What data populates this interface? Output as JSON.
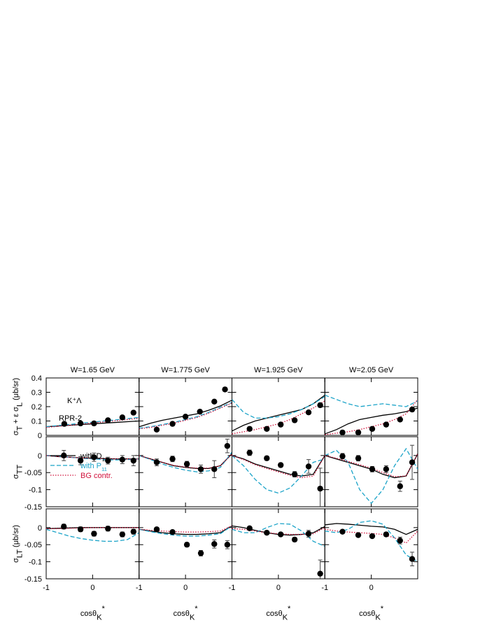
{
  "chart_data": {
    "type": "line",
    "annotations": [
      "K⁺Λ",
      "RPR-2"
    ],
    "titles": [
      "W=1.65 GeV",
      "W=1.775 GeV",
      "W=1.925 GeV",
      "W=2.05 GeV"
    ],
    "xlabel": [
      {
        "t": "cosθ"
      },
      {
        "t": "K",
        "pos": "sub"
      },
      {
        "t": "*",
        "pos": "sup"
      }
    ],
    "xlim": [
      -1,
      1
    ],
    "xticks": [
      -1,
      0
    ],
    "rows": [
      {
        "ylim": [
          0,
          0.4
        ],
        "yticks": [
          0,
          0.1,
          0.2,
          0.3,
          0.4
        ],
        "ylabel": [
          {
            "t": "σ"
          },
          {
            "t": "T",
            "pos": "sub"
          },
          {
            "t": " + ε σ"
          },
          {
            "t": "L",
            "pos": "sub"
          },
          {
            "t": "  (μb/sr)"
          }
        ]
      },
      {
        "ylim": [
          -0.15,
          0.055
        ],
        "yticks": [
          -0.15,
          -0.1,
          -0.05,
          0
        ],
        "ylabel": [
          {
            "t": "σ"
          },
          {
            "t": "TT",
            "pos": "sub"
          }
        ]
      },
      {
        "ylim": [
          -0.15,
          0.055
        ],
        "yticks": [
          -0.15,
          -0.1,
          -0.05,
          0
        ],
        "ylabel": [
          {
            "t": "σ"
          },
          {
            "t": "LT",
            "pos": "sub"
          },
          {
            "t": "  (μb/sr)"
          }
        ]
      }
    ],
    "series": [
      {
        "name": [
          {
            "t": "with D"
          },
          {
            "t": "13",
            "pos": "sub"
          }
        ],
        "color": "#000000",
        "dash": "solid"
      },
      {
        "name": [
          {
            "t": "with P"
          },
          {
            "t": "11",
            "pos": "sub"
          }
        ],
        "color": "#1aa3c8",
        "dash": "dashed"
      },
      {
        "name": [
          {
            "t": "BG contr."
          }
        ],
        "color": "#d0103a",
        "dash": "dotted"
      }
    ],
    "curve_x": [
      -1,
      -0.75,
      -0.5,
      -0.25,
      0,
      0.25,
      0.5,
      0.75,
      1
    ],
    "panels": [
      [
        {
          "curves": [
            [
              0.06,
              0.065,
              0.07,
              0.075,
              0.08,
              0.085,
              0.09,
              0.095,
              0.1
            ],
            [
              0.06,
              0.068,
              0.076,
              0.084,
              0.092,
              0.1,
              0.108,
              0.116,
              0.125
            ],
            [
              0.055,
              0.063,
              0.07,
              0.078,
              0.086,
              0.094,
              0.102,
              0.11,
              0.118
            ]
          ],
          "points": {
            "x": [
              -0.61,
              -0.26,
              0.03,
              0.33,
              0.64,
              0.88
            ],
            "y": [
              0.08,
              0.083,
              0.083,
              0.105,
              0.125,
              0.158
            ],
            "err": [
              0.005,
              0.005,
              0.005,
              0.005,
              0.005,
              0.005
            ]
          }
        },
        {
          "curves": [
            [
              0.06,
              0.085,
              0.105,
              0.12,
              0.135,
              0.15,
              0.175,
              0.205,
              0.245
            ],
            [
              0.05,
              0.06,
              0.075,
              0.09,
              0.11,
              0.13,
              0.16,
              0.195,
              0.23
            ],
            [
              0.045,
              0.055,
              0.07,
              0.085,
              0.105,
              0.125,
              0.155,
              0.19,
              0.225
            ]
          ],
          "points": {
            "x": [
              -0.62,
              -0.28,
              0.0,
              0.31,
              0.62,
              0.85
            ],
            "y": [
              0.04,
              0.08,
              0.13,
              0.165,
              0.235,
              0.32
            ],
            "err": [
              0.005,
              0.005,
              0.005,
              0.005,
              0.005,
              0.006
            ]
          }
        },
        {
          "curves": [
            [
              0.03,
              0.07,
              0.1,
              0.12,
              0.14,
              0.16,
              0.18,
              0.22,
              0.28
            ],
            [
              0.25,
              0.16,
              0.12,
              0.12,
              0.13,
              0.15,
              0.18,
              0.22,
              0.27
            ],
            [
              0.01,
              0.025,
              0.04,
              0.06,
              0.08,
              0.11,
              0.15,
              0.19,
              0.24
            ]
          ],
          "points": {
            "x": [
              -0.62,
              -0.25,
              0.05,
              0.35,
              0.65,
              0.9
            ],
            "y": [
              0.045,
              0.045,
              0.075,
              0.105,
              0.16,
              0.21
            ],
            "err": [
              0.004,
              0.004,
              0.004,
              0.005,
              0.006,
              0.015
            ]
          }
        },
        {
          "curves": [
            [
              0.01,
              0.04,
              0.08,
              0.11,
              0.125,
              0.14,
              0.15,
              0.165,
              0.19
            ],
            [
              0.28,
              0.25,
              0.22,
              0.2,
              0.21,
              0.22,
              0.21,
              0.2,
              0.24
            ],
            [
              0.005,
              0.015,
              0.025,
              0.04,
              0.06,
              0.08,
              0.11,
              0.15,
              0.25
            ]
          ],
          "points": {
            "x": [
              -0.62,
              -0.28,
              0.02,
              0.32,
              0.62,
              0.88
            ],
            "y": [
              0.02,
              0.02,
              0.045,
              0.075,
              0.11,
              0.18
            ],
            "err": [
              0.003,
              0.003,
              0.004,
              0.005,
              0.006,
              0.012
            ]
          }
        }
      ],
      [
        {
          "curves": [
            [
              0,
              -0.003,
              -0.005,
              -0.007,
              -0.008,
              -0.009,
              -0.01,
              -0.01,
              -0.01
            ],
            [
              0,
              -0.002,
              -0.005,
              -0.008,
              -0.01,
              -0.012,
              -0.013,
              -0.012,
              -0.01
            ],
            [
              0,
              -0.003,
              -0.005,
              -0.007,
              -0.008,
              -0.009,
              -0.01,
              -0.01,
              -0.01
            ]
          ],
          "points": {
            "x": [
              -0.62,
              -0.26,
              0.03,
              0.33,
              0.64,
              0.88
            ],
            "y": [
              0,
              -0.015,
              -0.005,
              -0.015,
              -0.012,
              -0.015
            ],
            "err": [
              0.015,
              0.012,
              0.012,
              0.01,
              0.012,
              0.015
            ]
          }
        },
        {
          "curves": [
            [
              0,
              -0.01,
              -0.02,
              -0.03,
              -0.035,
              -0.038,
              -0.038,
              -0.03,
              0.005
            ],
            [
              0,
              -0.012,
              -0.025,
              -0.035,
              -0.043,
              -0.048,
              -0.045,
              -0.035,
              0.01
            ],
            [
              0,
              -0.01,
              -0.02,
              -0.029,
              -0.034,
              -0.037,
              -0.037,
              -0.03,
              0.005
            ]
          ],
          "points": {
            "x": [
              -0.62,
              -0.28,
              0.03,
              0.33,
              0.62,
              0.9
            ],
            "y": [
              -0.02,
              -0.01,
              -0.025,
              -0.04,
              -0.04,
              0.028
            ],
            "err": [
              0.01,
              0.008,
              0.008,
              0.012,
              0.025,
              0.02
            ]
          }
        },
        {
          "curves": [
            [
              0,
              -0.01,
              -0.025,
              -0.035,
              -0.045,
              -0.055,
              -0.06,
              -0.055,
              0
            ],
            [
              0,
              -0.03,
              -0.07,
              -0.1,
              -0.11,
              -0.095,
              -0.06,
              -0.02,
              -0.01
            ],
            [
              0,
              -0.012,
              -0.027,
              -0.038,
              -0.048,
              -0.058,
              -0.065,
              -0.06,
              0
            ]
          ],
          "points": {
            "x": [
              -0.62,
              -0.25,
              0.05,
              0.35,
              0.65,
              0.9
            ],
            "y": [
              0.008,
              -0.008,
              -0.028,
              -0.055,
              -0.032,
              -0.097
            ],
            "err": [
              0.008,
              0.006,
              0.006,
              0.008,
              0.02,
              0.06
            ]
          }
        },
        {
          "curves": [
            [
              0,
              -0.01,
              -0.02,
              -0.03,
              -0.04,
              -0.055,
              -0.065,
              -0.06,
              0.005
            ],
            [
              0,
              0.015,
              -0.02,
              -0.1,
              -0.14,
              -0.1,
              -0.03,
              0.02,
              -0.04
            ],
            [
              0,
              -0.008,
              -0.017,
              -0.027,
              -0.037,
              -0.05,
              -0.062,
              -0.06,
              0.005
            ]
          ],
          "points": {
            "x": [
              -0.62,
              -0.28,
              0.02,
              0.32,
              0.62,
              0.88
            ],
            "y": [
              -0.002,
              -0.008,
              -0.04,
              -0.04,
              -0.09,
              -0.02
            ],
            "err": [
              0.008,
              0.008,
              0.008,
              0.01,
              0.015,
              0.05
            ]
          }
        }
      ],
      [
        {
          "curves": [
            [
              -0.003,
              -0.002,
              -0.001,
              0,
              0,
              0,
              0,
              0,
              0
            ],
            [
              -0.005,
              -0.015,
              -0.025,
              -0.032,
              -0.037,
              -0.04,
              -0.04,
              -0.035,
              -0.015
            ],
            [
              -0.003,
              -0.003,
              -0.002,
              -0.001,
              0,
              0,
              0,
              0,
              0
            ]
          ],
          "points": {
            "x": [
              -0.62,
              -0.26,
              0.03,
              0.33,
              0.64,
              0.88
            ],
            "y": [
              0.003,
              -0.005,
              -0.018,
              -0.003,
              -0.02,
              -0.012
            ],
            "err": [
              0.007,
              0.007,
              0.007,
              0.007,
              0.007,
              0.007
            ]
          }
        },
        {
          "curves": [
            [
              -0.005,
              -0.01,
              -0.015,
              -0.018,
              -0.02,
              -0.02,
              -0.018,
              -0.015,
              0.005
            ],
            [
              -0.005,
              -0.012,
              -0.018,
              -0.022,
              -0.025,
              -0.025,
              -0.022,
              -0.018,
              0.005
            ],
            [
              -0.005,
              -0.008,
              -0.01,
              -0.012,
              -0.013,
              -0.013,
              -0.012,
              -0.01,
              0.005
            ]
          ],
          "points": {
            "x": [
              -0.62,
              -0.28,
              0.03,
              0.33,
              0.62,
              0.9
            ],
            "y": [
              -0.005,
              -0.013,
              -0.05,
              -0.075,
              -0.048,
              -0.05
            ],
            "err": [
              0.005,
              0.005,
              0.006,
              0.008,
              0.012,
              0.012
            ]
          }
        },
        {
          "curves": [
            [
              0.005,
              0,
              -0.008,
              -0.015,
              -0.02,
              -0.022,
              -0.02,
              -0.015,
              0.003
            ],
            [
              -0.005,
              -0.015,
              -0.015,
              0.0,
              0.012,
              0.01,
              -0.01,
              -0.04,
              -0.055
            ],
            [
              -0.003,
              -0.005,
              -0.01,
              -0.015,
              -0.018,
              -0.02,
              -0.02,
              -0.018,
              0.0
            ]
          ],
          "points": {
            "x": [
              -0.62,
              -0.25,
              0.05,
              0.35,
              0.65,
              0.9
            ],
            "y": [
              -0.002,
              -0.015,
              -0.02,
              -0.035,
              -0.018,
              -0.135
            ],
            "err": [
              0.004,
              0.004,
              0.005,
              0.006,
              0.01,
              0.04
            ]
          }
        },
        {
          "curves": [
            [
              0.008,
              0.012,
              0.01,
              0.007,
              0.004,
              0.002,
              -0.005,
              -0.02,
              -0.005
            ],
            [
              -0.01,
              -0.015,
              -0.005,
              0.015,
              0.02,
              0.01,
              -0.03,
              -0.08,
              -0.1
            ],
            [
              -0.005,
              -0.01,
              -0.013,
              -0.015,
              -0.017,
              -0.02,
              -0.03,
              -0.045,
              -0.01
            ]
          ],
          "points": {
            "x": [
              -0.62,
              -0.28,
              0.02,
              0.32,
              0.62,
              0.88
            ],
            "y": [
              -0.012,
              -0.022,
              -0.025,
              -0.02,
              -0.038,
              -0.092
            ],
            "err": [
              0.004,
              0.004,
              0.004,
              0.006,
              0.01,
              0.02
            ]
          }
        }
      ]
    ]
  }
}
